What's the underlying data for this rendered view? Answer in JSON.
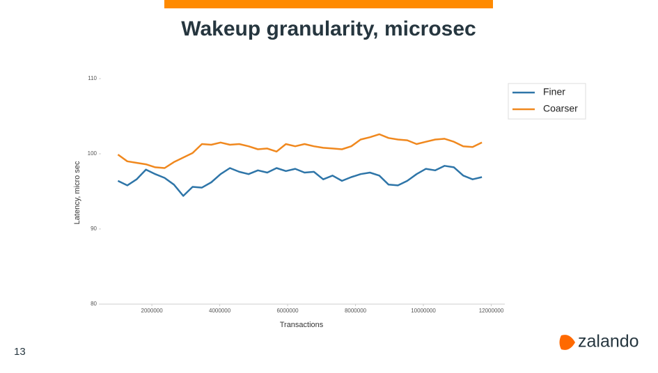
{
  "slide_number": "13",
  "logo": "zalando",
  "chart_data": {
    "type": "line",
    "title": "Wakeup granularity, microsec",
    "x_label": "Transactions",
    "y_label": "Latency, micro sec",
    "x": [
      1000000,
      1275000,
      1550000,
      1825000,
      2100000,
      2375000,
      2650000,
      2925000,
      3200000,
      3475000,
      3750000,
      4025000,
      4300000,
      4575000,
      4850000,
      5125000,
      5400000,
      5675000,
      5950000,
      6225000,
      6500000,
      6775000,
      7050000,
      7325000,
      7600000,
      7875000,
      8150000,
      8425000,
      8700000,
      8975000,
      9250000,
      9525000,
      9800000,
      10075000,
      10350000,
      10625000,
      10900000,
      11175000,
      11450000,
      11725000
    ],
    "series": [
      {
        "name": "Finer",
        "color": "#2e75a8",
        "values": [
          96.4,
          95.8,
          96.6,
          97.9,
          97.3,
          96.8,
          95.9,
          94.4,
          95.6,
          95.5,
          96.2,
          97.3,
          98.1,
          97.6,
          97.3,
          97.8,
          97.5,
          98.1,
          97.7,
          98.0,
          97.5,
          97.6,
          96.6,
          97.1,
          96.4,
          96.9,
          97.3,
          97.5,
          97.1,
          95.9,
          95.8,
          96.4,
          97.3,
          98.0,
          97.8,
          98.4,
          98.2,
          97.1,
          96.6,
          96.9
        ]
      },
      {
        "name": "Coarser",
        "color": "#f0881e",
        "values": [
          99.9,
          99.0,
          98.8,
          98.6,
          98.2,
          98.1,
          98.9,
          99.5,
          100.1,
          101.3,
          101.2,
          101.5,
          101.2,
          101.3,
          101.0,
          100.6,
          100.7,
          100.3,
          101.3,
          101.0,
          101.3,
          101.0,
          100.8,
          100.7,
          100.6,
          101.0,
          101.9,
          102.2,
          102.6,
          102.1,
          101.9,
          101.8,
          101.3,
          101.6,
          101.9,
          102.0,
          101.6,
          101.0,
          100.9,
          101.5
        ]
      }
    ],
    "xlim": [
      500000,
      12400000
    ],
    "xticks": [
      2000000,
      4000000,
      6000000,
      8000000,
      10000000,
      12000000
    ],
    "ylim": [
      80,
      110
    ],
    "yticks": [
      80,
      90,
      100,
      110
    ],
    "legend": "upper right"
  }
}
